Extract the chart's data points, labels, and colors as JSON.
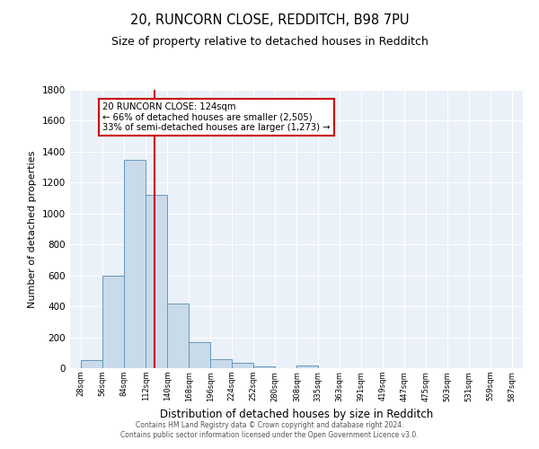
{
  "title": "20, RUNCORN CLOSE, REDDITCH, B98 7PU",
  "subtitle": "Size of property relative to detached houses in Redditch",
  "xlabel": "Distribution of detached houses by size in Redditch",
  "ylabel": "Number of detached properties",
  "bin_starts": [
    28,
    56,
    84,
    112,
    140,
    168,
    196,
    224,
    252,
    280,
    308,
    335,
    363,
    391,
    419,
    447,
    475,
    503,
    531,
    559
  ],
  "bin_width": 28,
  "bar_heights": [
    55,
    600,
    1350,
    1120,
    420,
    170,
    60,
    35,
    10,
    0,
    20,
    0,
    0,
    0,
    0,
    0,
    0,
    0,
    0,
    0
  ],
  "bar_color": "#c9daea",
  "bar_edge_color": "#6699bb",
  "property_size": 124,
  "vline_color": "#cc0000",
  "annotation_text": "20 RUNCORN CLOSE: 124sqm\n← 66% of detached houses are smaller (2,505)\n33% of semi-detached houses are larger (1,273) →",
  "annotation_box_color": "#ffffff",
  "annotation_box_edge": "#cc0000",
  "ylim": [
    0,
    1800
  ],
  "yticks": [
    0,
    200,
    400,
    600,
    800,
    1000,
    1200,
    1400,
    1600,
    1800
  ],
  "background_color": "#eaf1f8",
  "grid_color": "#ffffff",
  "footer_line1": "Contains HM Land Registry data © Crown copyright and database right 2024.",
  "footer_line2": "Contains public sector information licensed under the Open Government Licence v3.0."
}
